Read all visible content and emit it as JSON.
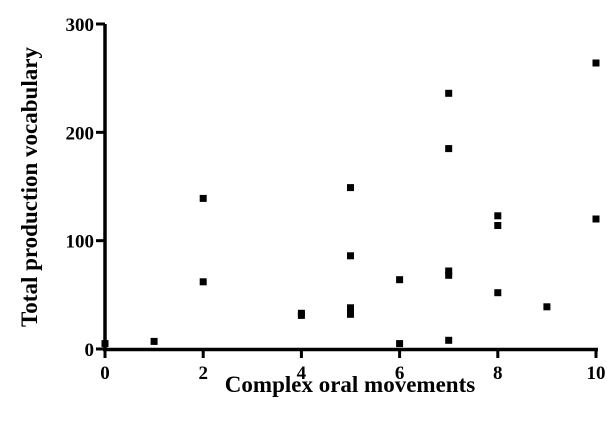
{
  "chart_data": {
    "type": "scatter",
    "title": "",
    "xlabel": "Complex oral movements",
    "ylabel": "Total production vocabulary",
    "xlim": [
      0,
      10
    ],
    "ylim": [
      0,
      300
    ],
    "xticks": [
      0,
      2,
      4,
      6,
      8,
      10
    ],
    "yticks": [
      0,
      100,
      200,
      300
    ],
    "xtick_labels": [
      "0",
      "2",
      "4",
      "6",
      "8",
      "10"
    ],
    "ytick_labels": [
      "0",
      "100",
      "200",
      "300"
    ],
    "grid": false,
    "marker": "square",
    "marker_color": "#000000",
    "series": [
      {
        "points": [
          [
            0,
            5
          ],
          [
            1,
            7
          ],
          [
            2,
            139
          ],
          [
            2,
            62
          ],
          [
            4,
            33
          ],
          [
            4,
            31
          ],
          [
            5,
            149
          ],
          [
            5,
            86
          ],
          [
            5,
            38
          ],
          [
            5,
            32
          ],
          [
            6,
            64
          ],
          [
            6,
            5
          ],
          [
            7,
            236
          ],
          [
            7,
            185
          ],
          [
            7,
            72
          ],
          [
            7,
            68
          ],
          [
            7,
            8
          ],
          [
            8,
            123
          ],
          [
            8,
            114
          ],
          [
            8,
            52
          ],
          [
            9,
            39
          ],
          [
            10,
            264
          ],
          [
            10,
            120
          ]
        ]
      }
    ]
  }
}
